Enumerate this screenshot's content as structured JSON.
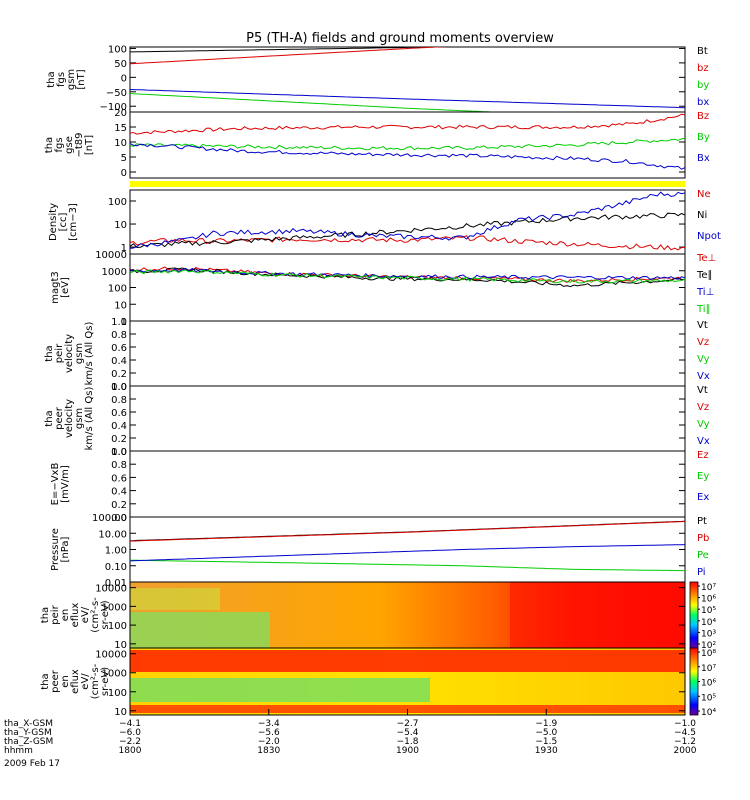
{
  "title": "P5 (TH-A) fields and ground moments overview",
  "colors": {
    "black": "#000000",
    "red": "#dd0000",
    "green": "#00cc00",
    "blue": "#0000cc",
    "yellow": "#ffff00"
  },
  "chart_data": [
    {
      "type": "line",
      "panel": "fgs_gsm",
      "ylabel": [
        "tha",
        "fgs",
        "gsm",
        "[nT]"
      ],
      "ylim": [
        -120,
        105
      ],
      "yticks": [
        100,
        50,
        0,
        -50,
        -100
      ],
      "ytick_labels": [
        "100",
        "50",
        "0",
        "−50",
        "−100"
      ],
      "series": [
        {
          "name": "Bt",
          "color": "black",
          "x": [
            0,
            0.55,
            1
          ],
          "y": [
            88,
            105,
            140
          ]
        },
        {
          "name": "bz",
          "color": "red",
          "x": [
            0,
            0.55,
            1
          ],
          "y": [
            47,
            105,
            140
          ]
        },
        {
          "name": "by",
          "color": "green",
          "x": [
            0,
            0.5,
            1
          ],
          "y": [
            -56,
            -107,
            -150
          ]
        },
        {
          "name": "bx",
          "color": "blue",
          "x": [
            0,
            0.5,
            1
          ],
          "y": [
            -42,
            -75,
            -105
          ]
        }
      ]
    },
    {
      "type": "line",
      "panel": "fgs_gse_t89",
      "ylabel": [
        "tha",
        "fgs",
        "gse",
        "−t89",
        "[nT]"
      ],
      "ylim": [
        -2,
        20
      ],
      "yticks": [
        20,
        15,
        10,
        5,
        0
      ],
      "ytick_labels": [
        "20",
        "15",
        "10",
        "5",
        "0"
      ],
      "series": [
        {
          "name": "Bz",
          "color": "red",
          "x": [
            0,
            0.2,
            0.4,
            0.6,
            0.8,
            0.9,
            1
          ],
          "y": [
            13,
            14.5,
            15,
            15,
            15,
            16,
            19
          ]
        },
        {
          "name": "By",
          "color": "green",
          "x": [
            0,
            0.2,
            0.4,
            0.6,
            0.8,
            0.9,
            1
          ],
          "y": [
            9,
            8.5,
            8,
            8,
            9,
            10,
            11
          ]
        },
        {
          "name": "Bx",
          "color": "blue",
          "x": [
            0,
            0.2,
            0.4,
            0.6,
            0.8,
            0.9,
            1
          ],
          "y": [
            9.5,
            7,
            6,
            5.5,
            4.5,
            3.5,
            1
          ]
        }
      ]
    },
    {
      "type": "line",
      "panel": "density",
      "ylabel": [
        "Density",
        "[cc]",
        "[cm−3]"
      ],
      "scale": "log",
      "ylim": [
        0.5,
        300
      ],
      "yticks": [
        100,
        10,
        1
      ],
      "ytick_labels": [
        "100",
        "10",
        "1"
      ],
      "series": [
        {
          "name": "Ne",
          "color": "red",
          "x": [
            0,
            0.08,
            0.15,
            0.3,
            0.5,
            0.62,
            0.7,
            0.85,
            1
          ],
          "y": [
            1.5,
            2,
            1.8,
            2.2,
            2,
            2.5,
            1.8,
            1.2,
            0.9
          ]
        },
        {
          "name": "Ni",
          "color": "black",
          "x": [
            0,
            0.2,
            0.4,
            0.6,
            0.8,
            1
          ],
          "y": [
            1.1,
            1.8,
            3.5,
            8,
            18,
            25
          ]
        },
        {
          "name": "Npot",
          "color": "blue",
          "x": [
            0,
            0.1,
            0.15,
            0.3,
            0.45,
            0.6,
            0.7,
            0.8,
            0.9,
            0.95
          ],
          "y": [
            1,
            2,
            4,
            5,
            3,
            2.5,
            15,
            25,
            90,
            200
          ]
        }
      ]
    },
    {
      "type": "line",
      "panel": "magt3",
      "ylabel": [
        "magt3",
        "[eV]"
      ],
      "scale": "log",
      "ylim": [
        1,
        10000
      ],
      "yticks": [
        10000,
        1000,
        100,
        10,
        1
      ],
      "ytick_labels": [
        "10000",
        "1000",
        "100",
        "10",
        "1"
      ],
      "series": [
        {
          "name": "Te⊥",
          "color": "red",
          "x": [
            0,
            0.1,
            0.25,
            0.45,
            0.65,
            0.8,
            1
          ],
          "y": [
            1200,
            1400,
            700,
            450,
            350,
            250,
            380
          ]
        },
        {
          "name": "Te∥",
          "color": "black",
          "x": [
            0,
            0.1,
            0.25,
            0.45,
            0.65,
            0.8,
            1
          ],
          "y": [
            900,
            1200,
            600,
            350,
            280,
            130,
            300
          ]
        },
        {
          "name": "Ti⊥",
          "color": "blue",
          "x": [
            0,
            0.1,
            0.25,
            0.45,
            0.65,
            0.8,
            1
          ],
          "y": [
            1000,
            1100,
            700,
            500,
            420,
            400,
            380
          ]
        },
        {
          "name": "Ti∥",
          "color": "green",
          "x": [
            0,
            0.1,
            0.25,
            0.45,
            0.65,
            0.8,
            1
          ],
          "y": [
            800,
            1000,
            600,
            400,
            300,
            230,
            260
          ]
        }
      ]
    },
    {
      "type": "line",
      "panel": "peir_velocity",
      "ylabel": [
        "tha",
        "peir",
        "velocity",
        "gsm",
        "km/s (All Qs)"
      ],
      "ylim": [
        0,
        1
      ],
      "yticks": [
        1.0,
        0.8,
        0.6,
        0.4,
        0.2,
        0.0
      ],
      "ytick_labels": [
        "1.0",
        "0.8",
        "0.6",
        "0.4",
        "0.2",
        "0.0"
      ],
      "series": [
        {
          "name": "Vt",
          "color": "black"
        },
        {
          "name": "Vz",
          "color": "red"
        },
        {
          "name": "Vy",
          "color": "green"
        },
        {
          "name": "Vx",
          "color": "blue"
        }
      ]
    },
    {
      "type": "line",
      "panel": "peer_velocity",
      "ylabel": [
        "tha",
        "peer",
        "velocity",
        "gsm",
        "km/s (All Qs)"
      ],
      "ylim": [
        0,
        1
      ],
      "yticks": [
        1.0,
        0.8,
        0.6,
        0.4,
        0.2,
        0.0
      ],
      "ytick_labels": [
        "1.0",
        "0.8",
        "0.6",
        "0.4",
        "0.2",
        "0.0"
      ],
      "series": [
        {
          "name": "Vt",
          "color": "black"
        },
        {
          "name": "Vz",
          "color": "red"
        },
        {
          "name": "Vy",
          "color": "green"
        },
        {
          "name": "Vx",
          "color": "blue"
        }
      ]
    },
    {
      "type": "line",
      "panel": "efield",
      "ylabel": [
        "E=−VxB",
        "[mV/m]"
      ],
      "ylim": [
        0,
        1
      ],
      "yticks": [
        1.0,
        0.8,
        0.6,
        0.4,
        0.2,
        0.0
      ],
      "ytick_labels": [
        "1.0",
        "0.8",
        "0.6",
        "0.4",
        "0.2",
        "0.0"
      ],
      "series": [
        {
          "name": "Ez",
          "color": "red"
        },
        {
          "name": "Ey",
          "color": "green"
        },
        {
          "name": "Ex",
          "color": "blue"
        }
      ]
    },
    {
      "type": "line",
      "panel": "pressure",
      "ylabel": [
        "Pressure",
        "[nPa]"
      ],
      "scale": "log",
      "ylim": [
        0.01,
        100
      ],
      "yticks": [
        100,
        10,
        1,
        0.1,
        0.01
      ],
      "ytick_labels": [
        "100.00",
        "10.00",
        "1.00",
        "0.10",
        "0.01"
      ],
      "series": [
        {
          "name": "Pt",
          "color": "black",
          "x": [
            0,
            0.5,
            1
          ],
          "y": [
            3.5,
            12,
            55
          ]
        },
        {
          "name": "Pb",
          "color": "red",
          "x": [
            0,
            0.5,
            1
          ],
          "y": [
            3.3,
            11.5,
            53
          ]
        },
        {
          "name": "Pe",
          "color": "green",
          "x": [
            0,
            0.3,
            0.6,
            0.8,
            1
          ],
          "y": [
            0.22,
            0.15,
            0.1,
            0.06,
            0.05
          ]
        },
        {
          "name": "Pi",
          "color": "blue",
          "x": [
            0,
            0.3,
            0.6,
            0.8,
            1
          ],
          "y": [
            0.2,
            0.45,
            1.0,
            1.5,
            2.0
          ]
        }
      ]
    },
    {
      "type": "heatmap",
      "panel": "peir_en_eflux",
      "ylabel": [
        "tha",
        "peir",
        "en",
        "eflux",
        "eV/",
        "(cm²-s-",
        "sr-eV)"
      ],
      "scale": "log",
      "ylim": [
        6,
        20000
      ],
      "yticks": [
        10000,
        1000,
        100,
        10
      ],
      "ytick_labels": [
        "10000",
        "1000",
        "100",
        "10"
      ],
      "colorbar_labels": [
        "10⁷",
        "10⁶",
        "10⁵",
        "10⁴",
        "10³",
        "10²"
      ]
    },
    {
      "type": "heatmap",
      "panel": "peer_en_eflux",
      "ylabel": [
        "tha",
        "peer",
        "en",
        "eflux",
        "eV/",
        "(cm²-s-",
        "sr-eV)"
      ],
      "scale": "log",
      "ylim": [
        6,
        20000
      ],
      "yticks": [
        10000,
        1000,
        100,
        10
      ],
      "ytick_labels": [
        "10000",
        "1000",
        "100",
        "10"
      ],
      "colorbar_labels": [
        "10⁸",
        "10⁷",
        "10⁶",
        "10⁵",
        "10⁴"
      ]
    }
  ],
  "xaxis": {
    "rows": [
      {
        "label": "tha_X-GSM",
        "values": [
          "−4.1",
          "−3.4",
          "−2.7",
          "−1.9",
          "−1.0"
        ]
      },
      {
        "label": "tha_Y-GSM",
        "values": [
          "−6.0",
          "−5.6",
          "−5.4",
          "−5.0",
          "−4.5"
        ]
      },
      {
        "label": "tha_Z-GSM",
        "values": [
          "−2.2",
          "−2.0",
          "−1.8",
          "−1.5",
          "−1.2"
        ]
      },
      {
        "label": "hhmm",
        "values": [
          "1800",
          "1830",
          "1900",
          "1930",
          "2000"
        ]
      }
    ],
    "date": "2009 Feb 17"
  }
}
